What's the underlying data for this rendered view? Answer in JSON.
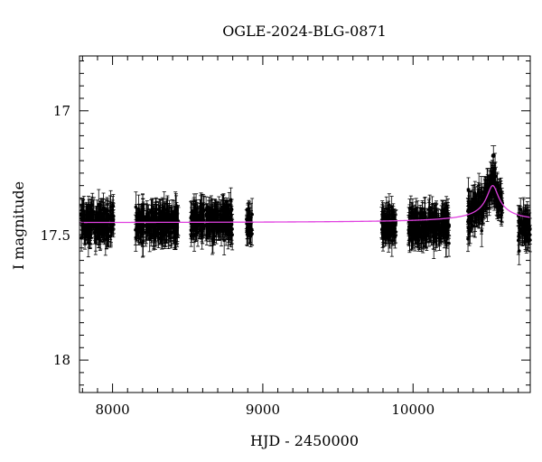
{
  "chart_data": {
    "type": "scatter",
    "title": "OGLE-2024-BLG-0871",
    "xlabel": "HJD - 2450000",
    "ylabel": "I magnitude",
    "xlim": [
      7780,
      10780
    ],
    "ylim": [
      18.13,
      16.78
    ],
    "y_inverted": true,
    "x_ticks": [
      8000,
      9000,
      10000
    ],
    "y_ticks": [
      17,
      17.5,
      18
    ],
    "y_tick_labels": [
      "17",
      "17.5",
      "18"
    ],
    "baseline_magnitude": 17.45,
    "peak": {
      "x": 10530,
      "y": 17.3,
      "marker_y": 17.18
    },
    "observing_seasons": [
      {
        "x_start": 7790,
        "x_end": 8010,
        "y_center": 17.45
      },
      {
        "x_start": 8150,
        "x_end": 8440,
        "y_center": 17.45
      },
      {
        "x_start": 8520,
        "x_end": 8800,
        "y_center": 17.44
      },
      {
        "x_start": 8890,
        "x_end": 8930,
        "y_center": 17.46
      },
      {
        "x_start": 9790,
        "x_end": 9890,
        "y_center": 17.46
      },
      {
        "x_start": 9970,
        "x_end": 10240,
        "y_center": 17.46
      },
      {
        "x_start": 10360,
        "x_end": 10600,
        "y_center": 17.42
      },
      {
        "x_start": 10700,
        "x_end": 10780,
        "y_center": 17.46
      }
    ],
    "model_color": "#e040e0",
    "point_color": "#000000",
    "grid": false,
    "legend": "none"
  }
}
